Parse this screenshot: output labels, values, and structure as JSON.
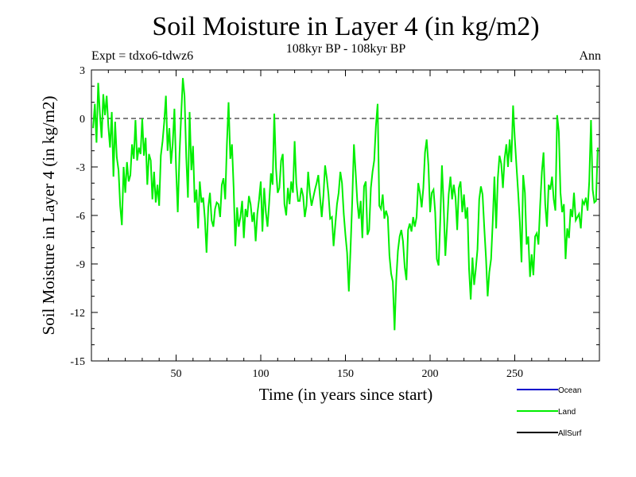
{
  "chart_data": {
    "type": "line",
    "title": "Soil Moisture in Layer 4 (in kg/m2)",
    "subtitle": "108kyr BP - 108kyr BP",
    "left_label": "Expt = tdxo6-tdwz6",
    "right_label": "Ann",
    "xlabel": "Time (in years since start)",
    "ylabel": "Soil Moisture in Layer 4 (in kg/m2)",
    "xlim": [
      0,
      300
    ],
    "ylim": [
      -15,
      3
    ],
    "xticks": [
      50,
      100,
      150,
      200,
      250
    ],
    "yticks": [
      3,
      0,
      -3,
      -6,
      -9,
      -12,
      -15
    ],
    "reference_line": {
      "y": 0,
      "style": "dashed",
      "color": "#000000"
    },
    "legend": [
      {
        "name": "Ocean",
        "color": "#0000cc"
      },
      {
        "name": "Land",
        "color": "#00ee00"
      },
      {
        "name": "AllSurf",
        "color": "#000000"
      }
    ],
    "series": [
      {
        "name": "Land",
        "color": "#00ee00",
        "x": [
          1,
          2,
          3,
          4,
          5,
          6,
          7,
          8,
          9,
          10,
          11,
          12,
          13,
          14,
          15,
          16,
          17,
          18,
          19,
          20,
          21,
          22,
          23,
          24,
          25,
          26,
          27,
          28,
          29,
          30,
          31,
          32,
          33,
          34,
          35,
          36,
          37,
          38,
          39,
          40,
          41,
          42,
          43,
          44,
          45,
          46,
          47,
          48,
          49,
          50,
          51,
          52,
          53,
          54,
          55,
          56,
          57,
          58,
          59,
          60,
          61,
          62,
          63,
          64,
          65,
          66,
          67,
          68,
          69,
          70,
          71,
          72,
          73,
          74,
          75,
          76,
          77,
          78,
          79,
          80,
          81,
          82,
          83,
          84,
          85,
          86,
          87,
          88,
          89,
          90,
          91,
          92,
          93,
          94,
          95,
          96,
          97,
          98,
          99,
          100,
          101,
          102,
          103,
          104,
          105,
          106,
          107,
          108,
          109,
          110,
          111,
          112,
          113,
          114,
          115,
          116,
          117,
          118,
          119,
          120,
          121,
          122,
          123,
          124,
          125,
          126,
          127,
          128,
          129,
          130,
          131,
          132,
          133,
          134,
          135,
          136,
          137,
          138,
          139,
          140,
          141,
          142,
          143,
          144,
          145,
          146,
          147,
          148,
          149,
          150,
          151,
          152,
          153,
          154,
          155,
          156,
          157,
          158,
          159,
          160,
          161,
          162,
          163,
          164,
          165,
          166,
          167,
          168,
          169,
          170,
          171,
          172,
          173,
          174,
          175,
          176,
          177,
          178,
          179,
          180,
          181,
          182,
          183,
          184,
          185,
          186,
          187,
          188,
          189,
          190,
          191,
          192,
          193,
          194,
          195,
          196,
          197,
          198,
          199,
          200,
          201,
          202,
          203,
          204,
          205,
          206,
          207,
          208,
          209,
          210,
          211,
          212,
          213,
          214,
          215,
          216,
          217,
          218,
          219,
          220,
          221,
          222,
          223,
          224,
          225,
          226,
          227,
          228,
          229,
          230,
          231,
          232,
          233,
          234,
          235,
          236,
          237,
          238,
          239,
          240,
          241,
          242,
          243,
          244,
          245,
          246,
          247,
          248,
          249,
          250,
          251,
          252,
          253,
          254,
          255,
          256,
          257,
          258,
          259,
          260,
          261,
          262,
          263,
          264,
          265,
          266,
          267,
          268,
          269,
          270,
          271,
          272,
          273,
          274,
          275,
          276,
          277,
          278,
          279,
          280,
          281,
          282,
          283,
          284,
          285,
          286,
          287,
          288,
          289,
          290,
          291,
          292,
          293,
          294,
          295,
          296,
          297,
          298,
          299
        ],
        "values": [
          -0.6,
          0.9,
          -1.5,
          2.2,
          0.3,
          -1.2,
          1.5,
          0.2,
          1.4,
          -0.5,
          -1.8,
          0.4,
          -3.6,
          -0.2,
          -2.4,
          -3.2,
          -5.4,
          -6.6,
          -3.0,
          -4.6,
          -2.7,
          -3.9,
          -3.5,
          -1.6,
          -2.5,
          -0.1,
          -2.6,
          -1.8,
          -2.2,
          0.0,
          -2.3,
          -1.2,
          -4.1,
          -2.2,
          -2.6,
          -5.0,
          -3.3,
          -5.2,
          -4.1,
          -5.4,
          -2.3,
          -1.4,
          -0.2,
          1.4,
          -2.0,
          -0.6,
          -2.8,
          -1.6,
          0.6,
          -3.1,
          -5.8,
          -2.2,
          0.2,
          2.5,
          1.4,
          -2.4,
          -4.9,
          0.4,
          -3.2,
          -1.7,
          -5.2,
          -4.4,
          -6.8,
          -3.9,
          -5.2,
          -4.9,
          -6.2,
          -8.3,
          -5.5,
          -4.6,
          -6.3,
          -6.7,
          -5.6,
          -5.2,
          -5.3,
          -6.1,
          -4.1,
          -3.7,
          -5.0,
          -1.6,
          1.0,
          -2.5,
          -1.6,
          -4.3,
          -7.9,
          -5.5,
          -6.7,
          -6.1,
          -5.1,
          -7.4,
          -5.6,
          -6.1,
          -4.8,
          -5.3,
          -6.4,
          -5.8,
          -7.6,
          -5.9,
          -5.0,
          -3.9,
          -7.0,
          -4.3,
          -5.8,
          -6.7,
          -5.2,
          -3.4,
          -4.1,
          0.3,
          -3.1,
          -4.6,
          -4.3,
          -2.6,
          -2.2,
          -5.3,
          -6.0,
          -4.3,
          -5.3,
          -3.9,
          -4.6,
          -1.4,
          -4.0,
          -5.1,
          -5.1,
          -4.3,
          -4.8,
          -6.1,
          -5.4,
          -3.3,
          -4.6,
          -5.4,
          -4.9,
          -4.4,
          -4.0,
          -3.5,
          -4.9,
          -6.1,
          -4.8,
          -2.9,
          -3.7,
          -4.7,
          -6.2,
          -6.1,
          -7.9,
          -6.6,
          -5.3,
          -4.6,
          -3.3,
          -4.0,
          -5.9,
          -7.2,
          -8.3,
          -10.7,
          -8.1,
          -5.2,
          -1.6,
          -3.3,
          -5.1,
          -6.2,
          -5.1,
          -7.4,
          -4.2,
          -3.9,
          -7.2,
          -6.9,
          -4.3,
          -3.3,
          -2.6,
          -0.5,
          0.9,
          -5.4,
          -5.6,
          -4.7,
          -6.2,
          -5.7,
          -6.1,
          -8.5,
          -9.6,
          -10.1,
          -13.1,
          -10.0,
          -8.2,
          -7.3,
          -6.9,
          -7.6,
          -9.2,
          -10.0,
          -6.9,
          -6.5,
          -7.0,
          -6.1,
          -6.7,
          -6.1,
          -4.0,
          -4.6,
          -5.5,
          -4.3,
          -2.1,
          -1.3,
          -2.9,
          -5.8,
          -4.6,
          -4.4,
          -5.8,
          -8.7,
          -9.1,
          -6.3,
          -2.9,
          -5.3,
          -8.5,
          -6.7,
          -4.7,
          -3.6,
          -5.0,
          -4.1,
          -4.9,
          -6.9,
          -4.3,
          -3.9,
          -5.8,
          -4.7,
          -6.2,
          -5.5,
          -9.3,
          -11.2,
          -8.6,
          -10.3,
          -9.3,
          -8.1,
          -5.0,
          -4.2,
          -4.7,
          -6.8,
          -8.6,
          -11.0,
          -9.5,
          -8.7,
          -6.4,
          -3.6,
          -6.8,
          -3.7,
          -2.3,
          -2.8,
          -4.3,
          -2.5,
          -1.6,
          -3.0,
          -1.3,
          -2.7,
          0.8,
          -1.2,
          -2.9,
          -4.6,
          -6.4,
          -8.9,
          -3.5,
          -4.6,
          -7.8,
          -7.3,
          -9.8,
          -8.4,
          -9.7,
          -7.3,
          -7.1,
          -7.8,
          -5.4,
          -3.3,
          -2.1,
          -5.3,
          -6.7,
          -4.1,
          -4.4,
          -3.6,
          -5.0,
          -5.7,
          0.2,
          -0.8,
          -4.6,
          -5.8,
          -5.3,
          -8.7,
          -6.8,
          -7.4,
          -5.6,
          -6.1,
          -4.6,
          -6.3,
          -6.1,
          -5.9,
          -6.8,
          -5.1,
          -5.3,
          -4.9,
          -5.7,
          -3.9,
          -0.1,
          -4.4,
          -5.2,
          -5.1,
          -1.8
        ]
      }
    ]
  }
}
